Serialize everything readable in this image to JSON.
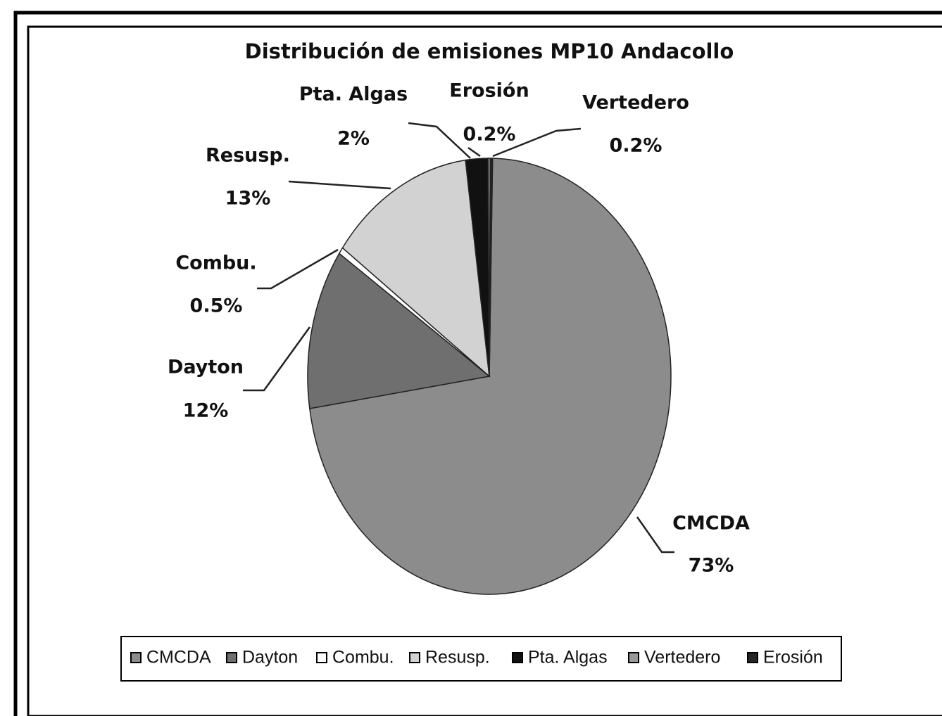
{
  "chart_data": {
    "type": "pie",
    "title": "Distribución de emisiones MP10 Andacollo",
    "categories": [
      "CMCDA",
      "Dayton",
      "Combu.",
      "Resusp.",
      "Pta. Algas",
      "Vertedero",
      "Erosión"
    ],
    "values": [
      73,
      12,
      0.5,
      13,
      2,
      0.2,
      0.2
    ],
    "value_labels": [
      "73%",
      "12%",
      "0.5%",
      "13%",
      "2%",
      "0.2%",
      "0.2%"
    ],
    "colors": [
      "#8c8c8c",
      "#6f6f6f",
      "#ffffff",
      "#d2d2d2",
      "#111111",
      "#9a9a9a",
      "#252525"
    ],
    "legend": "bottom"
  }
}
